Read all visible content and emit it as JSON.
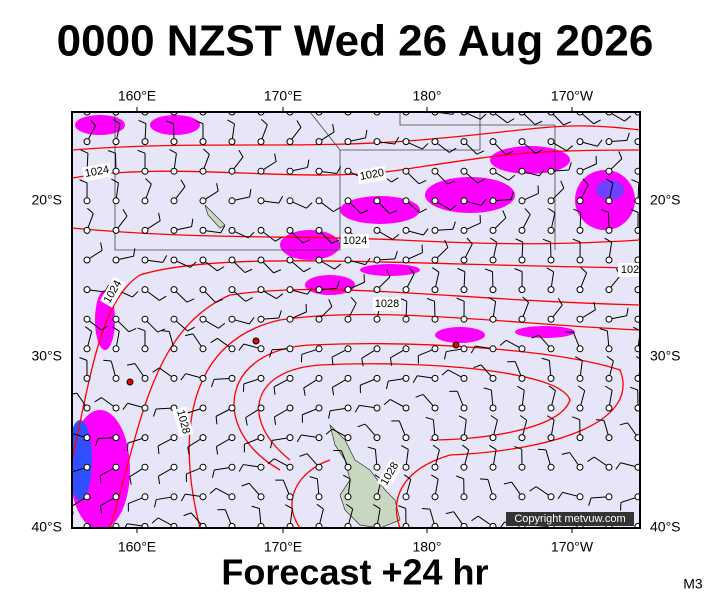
{
  "title": "0000 NZST Wed 26 Aug 2026",
  "map": {
    "lon_labels": [
      "160°E",
      "170°E",
      "180°",
      "170°W"
    ],
    "lat_labels": [
      "20°S",
      "30°S",
      "40°S"
    ],
    "isobar_labels": [
      "1024",
      "1020",
      "1024",
      "1028",
      "1024",
      "1028",
      "1028",
      "102"
    ],
    "copyright": "Copyright metvuw.com"
  },
  "footer": "Forecast +24 hr",
  "model": "M3"
}
